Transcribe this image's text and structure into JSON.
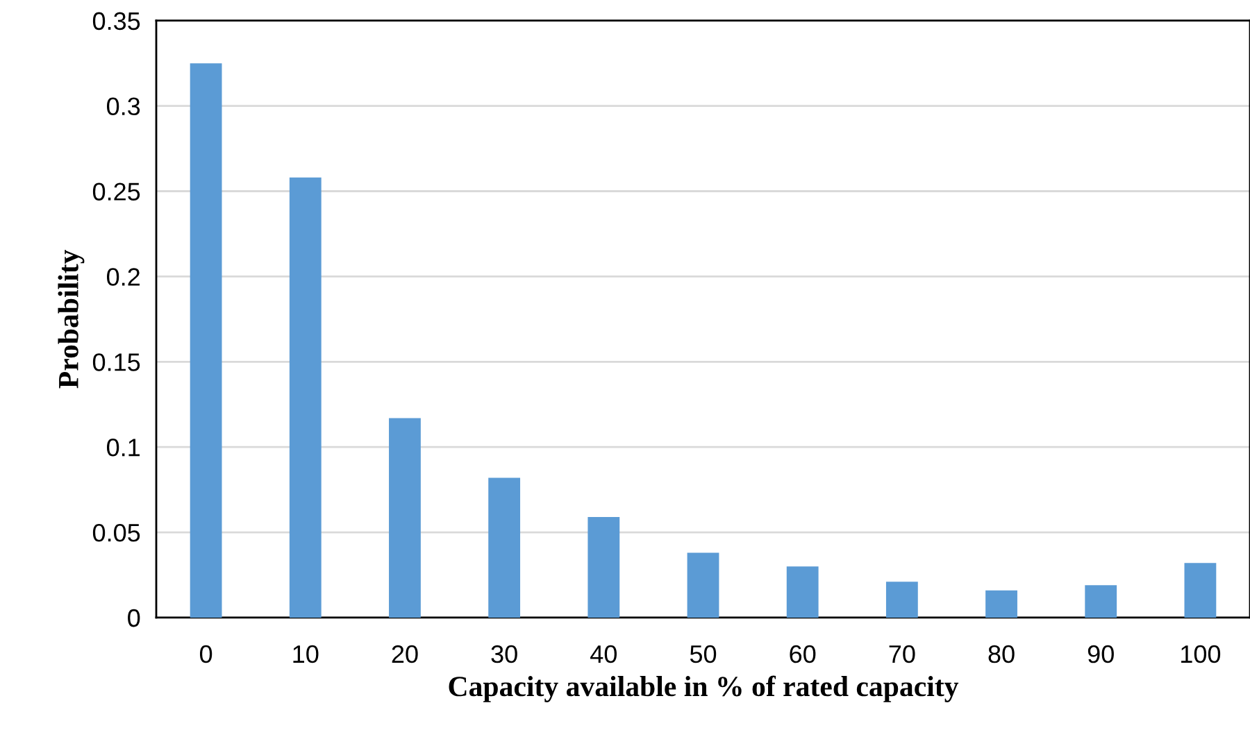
{
  "chart_data": {
    "type": "bar",
    "xlabel": "Capacity available in % of rated capacity",
    "ylabel": "Probability",
    "categories": [
      "0",
      "10",
      "20",
      "30",
      "40",
      "50",
      "60",
      "70",
      "80",
      "90",
      "100"
    ],
    "values": [
      0.325,
      0.258,
      0.117,
      0.082,
      0.059,
      0.038,
      0.03,
      0.021,
      0.016,
      0.019,
      0.032
    ],
    "color": "#5b9bd5",
    "ylim": [
      0,
      0.35
    ],
    "yticks": [
      {
        "value": 0,
        "label": "0"
      },
      0.05,
      {
        "value": 0.1,
        "label": "0.1"
      },
      0.15,
      {
        "value": 0.2,
        "label": "0.2"
      },
      0.25,
      {
        "value": 0.3,
        "label": "0.3"
      },
      0.35
    ],
    "grid": "y"
  }
}
